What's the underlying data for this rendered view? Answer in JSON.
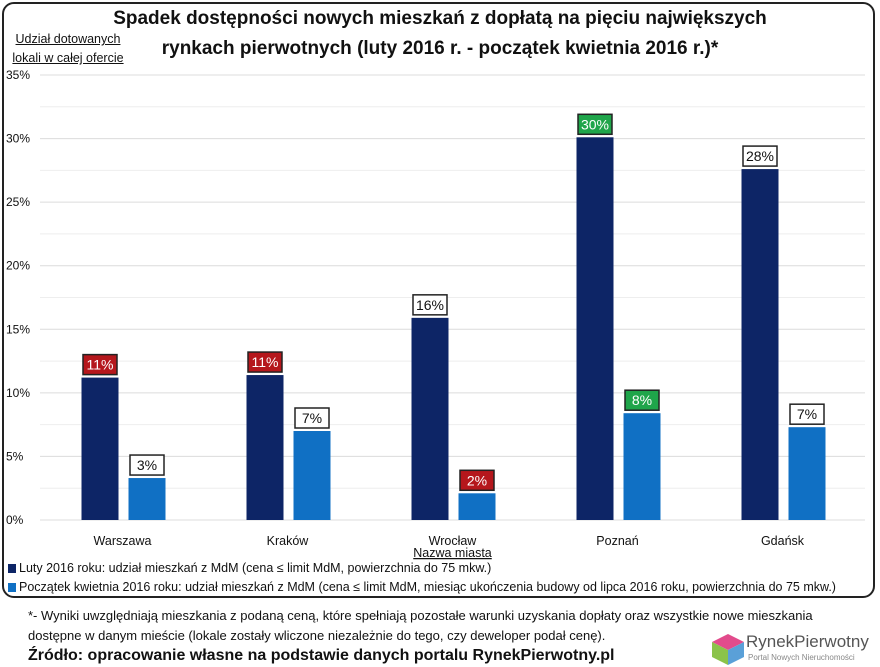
{
  "chart_data": {
    "type": "bar",
    "title": "Spadek dostępności nowych mieszkań z dopłatą na pięciu największych rynkach pierwotnych (luty 2016 r. - początek kwietnia 2016 r.)*",
    "title_lines": [
      "Spadek dostępności nowych mieszkań z dopłatą na pięciu największych",
      "rynkach pierwotnych (luty 2016 r. - początek kwietnia 2016 r.)*"
    ],
    "ylabel_lines": [
      "Udział dotowanych",
      "lokali w całej ofercie"
    ],
    "xlabel": "Nazwa miasta",
    "categories": [
      "Warszawa",
      "Kraków",
      "Wrocław",
      "Poznań",
      "Gdańsk"
    ],
    "ylim": [
      0,
      35
    ],
    "yticks": [
      "0%",
      "5%",
      "10%",
      "15%",
      "20%",
      "25%",
      "30%",
      "35%"
    ],
    "grid": true,
    "legend_position": "bottom",
    "series": [
      {
        "name": "Luty 2016 roku: udział mieszkań z MdM (cena ≤ limit MdM, powierzchnia do 75 mkw.)",
        "color": "#0d2566",
        "values": [
          11.2,
          11.4,
          15.9,
          30.1,
          27.6
        ],
        "labels": [
          "11%",
          "11%",
          "16%",
          "30%",
          "28%"
        ],
        "label_colors": [
          "#b5171c",
          "#b5171c",
          "#ffffff",
          "#1fa54a",
          "#ffffff"
        ]
      },
      {
        "name": "Początek kwietnia 2016 roku: udział mieszkań z MdM (cena ≤ limit MdM, miesiąc ukończenia budowy od lipca 2016 roku, powierzchnia do 75 mkw.)",
        "color": "#1070c4",
        "values": [
          3.3,
          7.0,
          2.1,
          8.4,
          7.3
        ],
        "labels": [
          "3%",
          "7%",
          "2%",
          "8%",
          "7%"
        ],
        "label_colors": [
          "#ffffff",
          "#ffffff",
          "#b5171c",
          "#1fa54a",
          "#ffffff"
        ]
      }
    ]
  },
  "footnote_lines": [
    "*- Wyniki uwzględniają mieszkania z podaną ceną, które spełniają pozostałe warunki uzyskania dopłaty oraz wszystkie nowe mieszkania",
    "dostępne w danym mieście (lokale zostały wliczone niezależnie do tego, czy deweloper podał cenę)."
  ],
  "source": "Źródło: opracowanie własne na podstawie danych portalu RynekPierwotny.pl",
  "logo": {
    "name": "RynekPierwotny",
    "tagline": "Portal Nowych Nieruchomości"
  }
}
